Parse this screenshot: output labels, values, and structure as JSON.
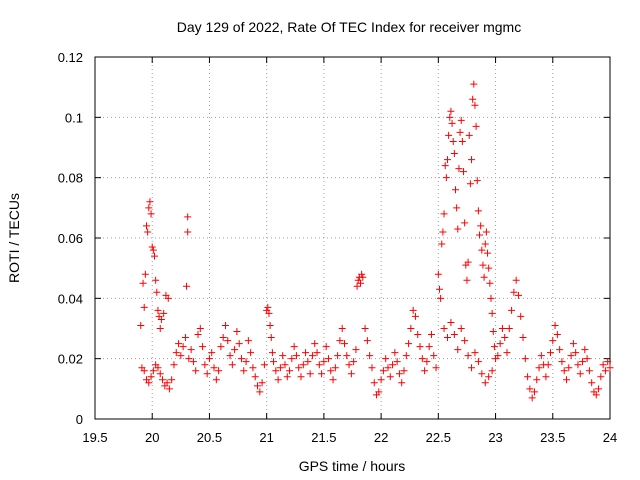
{
  "chart_data": {
    "type": "scatter",
    "title": "Day 129 of 2022, Rate Of TEC Index for receiver mgmc",
    "xlabel": "GPS time / hours",
    "ylabel": "ROTI / TECUs",
    "xlim": [
      19.5,
      24
    ],
    "ylim": [
      0,
      0.12
    ],
    "xticks": [
      19.5,
      20,
      20.5,
      21,
      21.5,
      22,
      22.5,
      23,
      23.5,
      24
    ],
    "xtick_labels": [
      "19.5",
      "20",
      "20.5",
      "21",
      "21.5",
      "22",
      "22.5",
      "23",
      "23.5",
      "24"
    ],
    "yticks": [
      0,
      0.02,
      0.04,
      0.06,
      0.08,
      0.1,
      0.12
    ],
    "ytick_labels": [
      "0",
      "0.02",
      "0.04",
      "0.06",
      "0.08",
      "0.1",
      "0.12"
    ],
    "grid": true,
    "marker": "+",
    "series": [
      {
        "name": "mgmc",
        "color": "#ff0000",
        "points": [
          [
            19.9,
            0.031
          ],
          [
            19.92,
            0.045
          ],
          [
            19.93,
            0.037
          ],
          [
            19.94,
            0.048
          ],
          [
            19.95,
            0.064
          ],
          [
            19.96,
            0.062
          ],
          [
            19.97,
            0.07
          ],
          [
            19.98,
            0.072
          ],
          [
            19.99,
            0.068
          ],
          [
            20.0,
            0.057
          ],
          [
            20.01,
            0.056
          ],
          [
            20.02,
            0.054
          ],
          [
            20.03,
            0.046
          ],
          [
            20.04,
            0.042
          ],
          [
            20.05,
            0.036
          ],
          [
            20.06,
            0.034
          ],
          [
            20.07,
            0.03
          ],
          [
            20.08,
            0.033
          ],
          [
            20.1,
            0.035
          ],
          [
            20.12,
            0.041
          ],
          [
            20.14,
            0.04
          ],
          [
            20.31,
            0.067
          ],
          [
            20.31,
            0.062
          ],
          [
            20.3,
            0.044
          ],
          [
            19.91,
            0.017
          ],
          [
            19.93,
            0.016
          ],
          [
            19.95,
            0.013
          ],
          [
            19.97,
            0.012
          ],
          [
            19.99,
            0.014
          ],
          [
            20.01,
            0.016
          ],
          [
            20.03,
            0.018
          ],
          [
            20.05,
            0.017
          ],
          [
            20.07,
            0.015
          ],
          [
            20.09,
            0.013
          ],
          [
            20.11,
            0.011
          ],
          [
            20.13,
            0.012
          ],
          [
            20.15,
            0.01
          ],
          [
            20.17,
            0.013
          ],
          [
            20.19,
            0.018
          ],
          [
            20.21,
            0.022
          ],
          [
            20.23,
            0.025
          ],
          [
            20.25,
            0.021
          ],
          [
            20.27,
            0.024
          ],
          [
            20.29,
            0.027
          ],
          [
            20.32,
            0.02
          ],
          [
            20.34,
            0.023
          ],
          [
            20.36,
            0.019
          ],
          [
            20.38,
            0.016
          ],
          [
            20.4,
            0.028
          ],
          [
            20.42,
            0.03
          ],
          [
            20.44,
            0.024
          ],
          [
            20.46,
            0.018
          ],
          [
            20.48,
            0.015
          ],
          [
            20.5,
            0.02
          ],
          [
            20.52,
            0.022
          ],
          [
            20.54,
            0.017
          ],
          [
            20.56,
            0.013
          ],
          [
            20.58,
            0.016
          ],
          [
            20.6,
            0.024
          ],
          [
            20.62,
            0.027
          ],
          [
            20.64,
            0.031
          ],
          [
            20.66,
            0.026
          ],
          [
            20.68,
            0.021
          ],
          [
            20.7,
            0.018
          ],
          [
            20.72,
            0.023
          ],
          [
            20.74,
            0.029
          ],
          [
            20.76,
            0.025
          ],
          [
            20.78,
            0.02
          ],
          [
            20.8,
            0.016
          ],
          [
            20.82,
            0.019
          ],
          [
            20.84,
            0.026
          ],
          [
            20.86,
            0.022
          ],
          [
            20.88,
            0.017
          ],
          [
            20.9,
            0.014
          ],
          [
            20.92,
            0.011
          ],
          [
            20.94,
            0.009
          ],
          [
            20.96,
            0.012
          ],
          [
            20.98,
            0.018
          ],
          [
            21.0,
            0.036
          ],
          [
            21.01,
            0.037
          ],
          [
            21.02,
            0.035
          ],
          [
            21.03,
            0.031
          ],
          [
            21.04,
            0.027
          ],
          [
            21.05,
            0.022
          ],
          [
            21.06,
            0.019
          ],
          [
            21.08,
            0.016
          ],
          [
            21.1,
            0.013
          ],
          [
            21.12,
            0.017
          ],
          [
            21.14,
            0.021
          ],
          [
            21.16,
            0.018
          ],
          [
            21.18,
            0.014
          ],
          [
            21.2,
            0.016
          ],
          [
            21.22,
            0.02
          ],
          [
            21.24,
            0.024
          ],
          [
            21.26,
            0.021
          ],
          [
            21.28,
            0.017
          ],
          [
            21.3,
            0.014
          ],
          [
            21.32,
            0.018
          ],
          [
            21.34,
            0.022
          ],
          [
            21.36,
            0.019
          ],
          [
            21.38,
            0.015
          ],
          [
            21.4,
            0.021
          ],
          [
            21.42,
            0.025
          ],
          [
            21.44,
            0.022
          ],
          [
            21.46,
            0.018
          ],
          [
            21.48,
            0.015
          ],
          [
            21.5,
            0.019
          ],
          [
            21.52,
            0.024
          ],
          [
            21.54,
            0.02
          ],
          [
            21.56,
            0.016
          ],
          [
            21.58,
            0.013
          ],
          [
            21.6,
            0.017
          ],
          [
            21.62,
            0.021
          ],
          [
            21.64,
            0.026
          ],
          [
            21.66,
            0.03
          ],
          [
            21.68,
            0.025
          ],
          [
            21.7,
            0.021
          ],
          [
            21.72,
            0.018
          ],
          [
            21.74,
            0.015
          ],
          [
            21.76,
            0.019
          ],
          [
            21.78,
            0.023
          ],
          [
            21.79,
            0.044
          ],
          [
            21.8,
            0.046
          ],
          [
            21.81,
            0.047
          ],
          [
            21.82,
            0.045
          ],
          [
            21.83,
            0.048
          ],
          [
            21.84,
            0.047
          ],
          [
            21.86,
            0.03
          ],
          [
            21.88,
            0.026
          ],
          [
            21.9,
            0.021
          ],
          [
            21.92,
            0.017
          ],
          [
            21.94,
            0.012
          ],
          [
            21.96,
            0.008
          ],
          [
            21.98,
            0.009
          ],
          [
            22.0,
            0.013
          ],
          [
            22.02,
            0.016
          ],
          [
            22.04,
            0.02
          ],
          [
            22.06,
            0.017
          ],
          [
            22.08,
            0.014
          ],
          [
            22.1,
            0.018
          ],
          [
            22.12,
            0.022
          ],
          [
            22.14,
            0.019
          ],
          [
            22.16,
            0.015
          ],
          [
            22.18,
            0.012
          ],
          [
            22.2,
            0.016
          ],
          [
            22.22,
            0.021
          ],
          [
            22.24,
            0.025
          ],
          [
            22.26,
            0.03
          ],
          [
            22.28,
            0.036
          ],
          [
            22.3,
            0.034
          ],
          [
            22.32,
            0.028
          ],
          [
            22.34,
            0.024
          ],
          [
            22.36,
            0.02
          ],
          [
            22.38,
            0.016
          ],
          [
            22.4,
            0.019
          ],
          [
            22.42,
            0.024
          ],
          [
            22.44,
            0.028
          ],
          [
            22.46,
            0.021
          ],
          [
            22.48,
            0.017
          ],
          [
            22.5,
            0.048
          ],
          [
            22.51,
            0.043
          ],
          [
            22.52,
            0.04
          ],
          [
            22.53,
            0.058
          ],
          [
            22.54,
            0.062
          ],
          [
            22.55,
            0.068
          ],
          [
            22.56,
            0.084
          ],
          [
            22.57,
            0.08
          ],
          [
            22.58,
            0.086
          ],
          [
            22.59,
            0.094
          ],
          [
            22.6,
            0.1
          ],
          [
            22.61,
            0.102
          ],
          [
            22.62,
            0.098
          ],
          [
            22.63,
            0.092
          ],
          [
            22.64,
            0.088
          ],
          [
            22.65,
            0.076
          ],
          [
            22.66,
            0.07
          ],
          [
            22.67,
            0.063
          ],
          [
            22.68,
            0.083
          ],
          [
            22.69,
            0.095
          ],
          [
            22.7,
            0.099
          ],
          [
            22.71,
            0.092
          ],
          [
            22.72,
            0.082
          ],
          [
            22.73,
            0.065
          ],
          [
            22.74,
            0.051
          ],
          [
            22.75,
            0.046
          ],
          [
            22.76,
            0.052
          ],
          [
            22.77,
            0.094
          ],
          [
            22.78,
            0.078
          ],
          [
            22.79,
            0.086
          ],
          [
            22.8,
            0.106
          ],
          [
            22.81,
            0.111
          ],
          [
            22.82,
            0.104
          ],
          [
            22.83,
            0.097
          ],
          [
            22.84,
            0.079
          ],
          [
            22.85,
            0.069
          ],
          [
            22.86,
            0.061
          ],
          [
            22.87,
            0.064
          ],
          [
            22.88,
            0.056
          ],
          [
            22.89,
            0.051
          ],
          [
            22.9,
            0.047
          ],
          [
            22.91,
            0.058
          ],
          [
            22.92,
            0.062
          ],
          [
            22.93,
            0.055
          ],
          [
            22.94,
            0.05
          ],
          [
            22.95,
            0.045
          ],
          [
            22.96,
            0.04
          ],
          [
            22.97,
            0.035
          ],
          [
            22.98,
            0.029
          ],
          [
            22.99,
            0.024
          ],
          [
            23.0,
            0.02
          ],
          [
            22.55,
            0.03
          ],
          [
            22.58,
            0.027
          ],
          [
            22.61,
            0.032
          ],
          [
            22.64,
            0.028
          ],
          [
            22.67,
            0.023
          ],
          [
            22.7,
            0.03
          ],
          [
            22.73,
            0.026
          ],
          [
            22.76,
            0.021
          ],
          [
            22.79,
            0.017
          ],
          [
            22.82,
            0.022
          ],
          [
            22.85,
            0.019
          ],
          [
            22.88,
            0.015
          ],
          [
            22.91,
            0.012
          ],
          [
            22.94,
            0.014
          ],
          [
            22.97,
            0.016
          ],
          [
            23.02,
            0.021
          ],
          [
            23.04,
            0.025
          ],
          [
            23.06,
            0.03
          ],
          [
            23.08,
            0.027
          ],
          [
            23.1,
            0.022
          ],
          [
            23.12,
            0.03
          ],
          [
            23.14,
            0.036
          ],
          [
            23.16,
            0.042
          ],
          [
            23.18,
            0.046
          ],
          [
            23.2,
            0.041
          ],
          [
            23.22,
            0.034
          ],
          [
            23.24,
            0.027
          ],
          [
            23.26,
            0.02
          ],
          [
            23.28,
            0.014
          ],
          [
            23.3,
            0.01
          ],
          [
            23.32,
            0.007
          ],
          [
            23.34,
            0.009
          ],
          [
            23.36,
            0.013
          ],
          [
            23.38,
            0.017
          ],
          [
            23.4,
            0.021
          ],
          [
            23.42,
            0.018
          ],
          [
            23.44,
            0.014
          ],
          [
            23.46,
            0.018
          ],
          [
            23.48,
            0.022
          ],
          [
            23.5,
            0.026
          ],
          [
            23.52,
            0.031
          ],
          [
            23.54,
            0.028
          ],
          [
            23.56,
            0.023
          ],
          [
            23.58,
            0.019
          ],
          [
            23.6,
            0.016
          ],
          [
            23.62,
            0.013
          ],
          [
            23.64,
            0.017
          ],
          [
            23.66,
            0.021
          ],
          [
            23.68,
            0.025
          ],
          [
            23.7,
            0.022
          ],
          [
            23.72,
            0.018
          ],
          [
            23.74,
            0.015
          ],
          [
            23.76,
            0.019
          ],
          [
            23.78,
            0.023
          ],
          [
            23.8,
            0.02
          ],
          [
            23.82,
            0.016
          ],
          [
            23.84,
            0.012
          ],
          [
            23.86,
            0.009
          ],
          [
            23.88,
            0.008
          ],
          [
            23.9,
            0.01
          ],
          [
            23.92,
            0.014
          ],
          [
            23.94,
            0.018
          ],
          [
            23.96,
            0.016
          ],
          [
            23.98,
            0.019
          ],
          [
            24.0,
            0.017
          ]
        ]
      }
    ]
  }
}
